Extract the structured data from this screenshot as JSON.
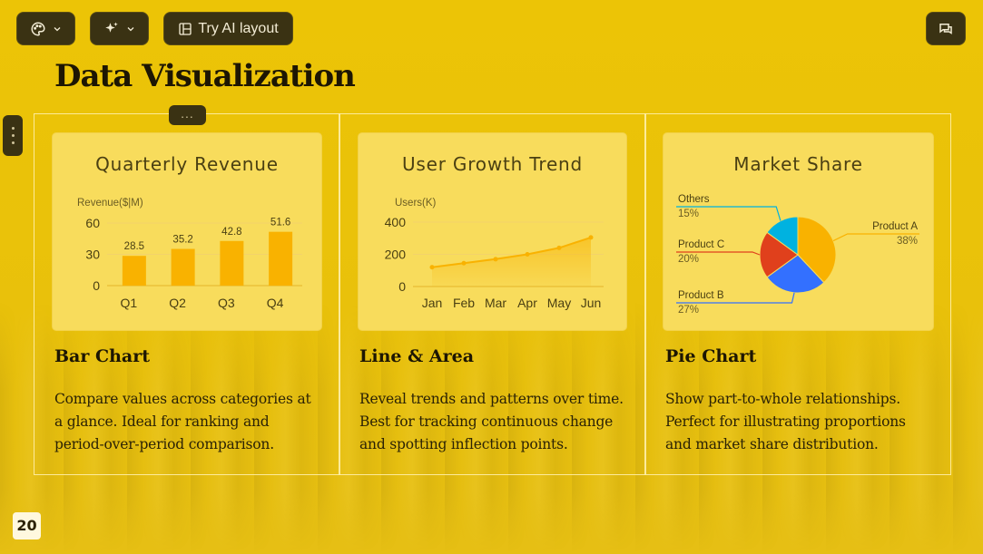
{
  "toolbar": {
    "theme_icon": "palette-icon",
    "magic_icon": "sparkles-icon",
    "ai_layout_label": "Try AI layout",
    "ai_layout_icon": "layout-icon",
    "comment_icon": "comment-icon"
  },
  "slide": {
    "title": "Data Visualization",
    "drag_handle": "...",
    "page_number": "20",
    "columns": [
      {
        "heading": "Bar Chart",
        "description": "Compare values across categories at a glance. Ideal for ranking and period-over-period comparison."
      },
      {
        "heading": "Line & Area",
        "description": "Reveal trends and patterns over time. Best for tracking continuous change and spotting inflection points."
      },
      {
        "heading": "Pie Chart",
        "description": "Show part-to-whole relationships. Perfect for illustrating proportions and market share distribution."
      }
    ]
  },
  "colors": {
    "background": "#e8c10a",
    "card": "#f8dc5c",
    "bar": "#f9b200",
    "pie_a": "#f9b200",
    "pie_b": "#3370ff",
    "pie_c": "#e0401c",
    "pie_others": "#00b2e0"
  },
  "chart_data": [
    {
      "type": "bar",
      "title": "Quarterly Revenue",
      "ylabel": "Revenue($|M)",
      "categories": [
        "Q1",
        "Q2",
        "Q3",
        "Q4"
      ],
      "values": [
        28.5,
        35.2,
        42.8,
        51.6
      ],
      "yticks": [
        0,
        30,
        60
      ],
      "ylim": [
        0,
        60
      ],
      "data_labels": true
    },
    {
      "type": "area",
      "title": "User Growth Trend",
      "ylabel": "Users(K)",
      "categories": [
        "Jan",
        "Feb",
        "Mar",
        "Apr",
        "May",
        "Jun"
      ],
      "values": [
        120,
        145,
        170,
        200,
        240,
        305
      ],
      "yticks": [
        0,
        200,
        400
      ],
      "ylim": [
        0,
        400
      ]
    },
    {
      "type": "pie",
      "title": "Market Share",
      "slices": [
        {
          "label": "Product A",
          "value": 38,
          "display": "38%"
        },
        {
          "label": "Product B",
          "value": 27,
          "display": "27%"
        },
        {
          "label": "Product C",
          "value": 20,
          "display": "20%"
        },
        {
          "label": "Others",
          "value": 15,
          "display": "15%"
        }
      ]
    }
  ]
}
